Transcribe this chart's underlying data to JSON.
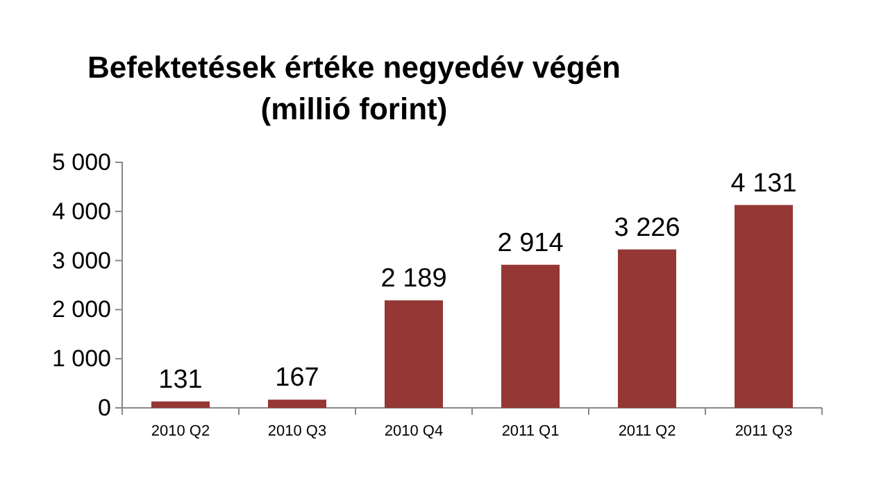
{
  "chart_data": {
    "type": "bar",
    "title": "Befektetések értéke negyedév végén\n(millió forint)",
    "categories": [
      "2010 Q2",
      "2010 Q3",
      "2010 Q4",
      "2011 Q1",
      "2011 Q2",
      "2011 Q3"
    ],
    "values": [
      131,
      167,
      2189,
      2914,
      3226,
      4131
    ],
    "value_labels": [
      "131",
      "167",
      "2 189",
      "2 914",
      "3 226",
      "4 131"
    ],
    "color": "#953735",
    "ylim": [
      0,
      5000
    ],
    "yticks": [
      0,
      {
        "value": 1000,
        "label": "1 000"
      },
      {
        "value": 2000,
        "label": "2 000"
      },
      {
        "value": 3000,
        "label": "3 000"
      },
      {
        "value": 4000,
        "label": "4 000"
      },
      {
        "value": 5000,
        "label": "5 000"
      }
    ],
    "grid": false
  }
}
